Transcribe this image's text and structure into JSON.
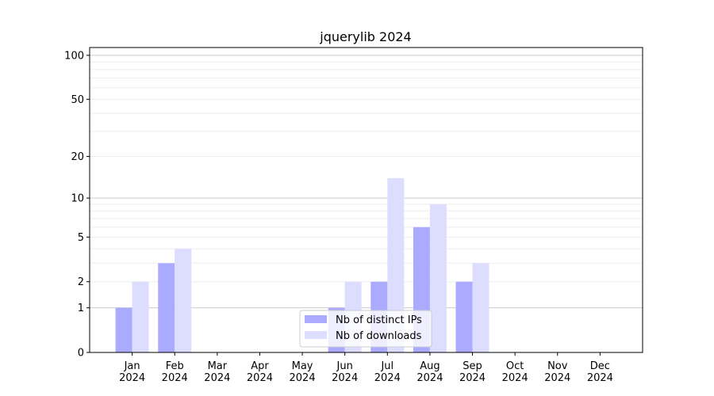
{
  "chart_data": {
    "type": "bar",
    "title": "jquerylib 2024",
    "xlabel": "",
    "ylabel": "",
    "yscale": "log10(1+y)",
    "ylim": [
      0,
      113
    ],
    "yticks": [
      0,
      1,
      2,
      5,
      10,
      20,
      50,
      100
    ],
    "grid": true,
    "legend_placement": "lower-center",
    "categories": [
      "Jan\n2024",
      "Feb\n2024",
      "Mar\n2024",
      "Apr\n2024",
      "May\n2024",
      "Jun\n2024",
      "Jul\n2024",
      "Aug\n2024",
      "Sep\n2024",
      "Oct\n2024",
      "Nov\n2024",
      "Dec\n2024"
    ],
    "series": [
      {
        "name": "Nb of distinct IPs",
        "color": "#aaaaff",
        "values": [
          1,
          3,
          0,
          0,
          0,
          1,
          2,
          6,
          2,
          0,
          0,
          0
        ]
      },
      {
        "name": "Nb of downloads",
        "color": "#ddddff",
        "values": [
          2,
          4,
          0,
          0,
          0,
          2,
          14,
          9,
          3,
          0,
          0,
          0
        ]
      }
    ]
  }
}
